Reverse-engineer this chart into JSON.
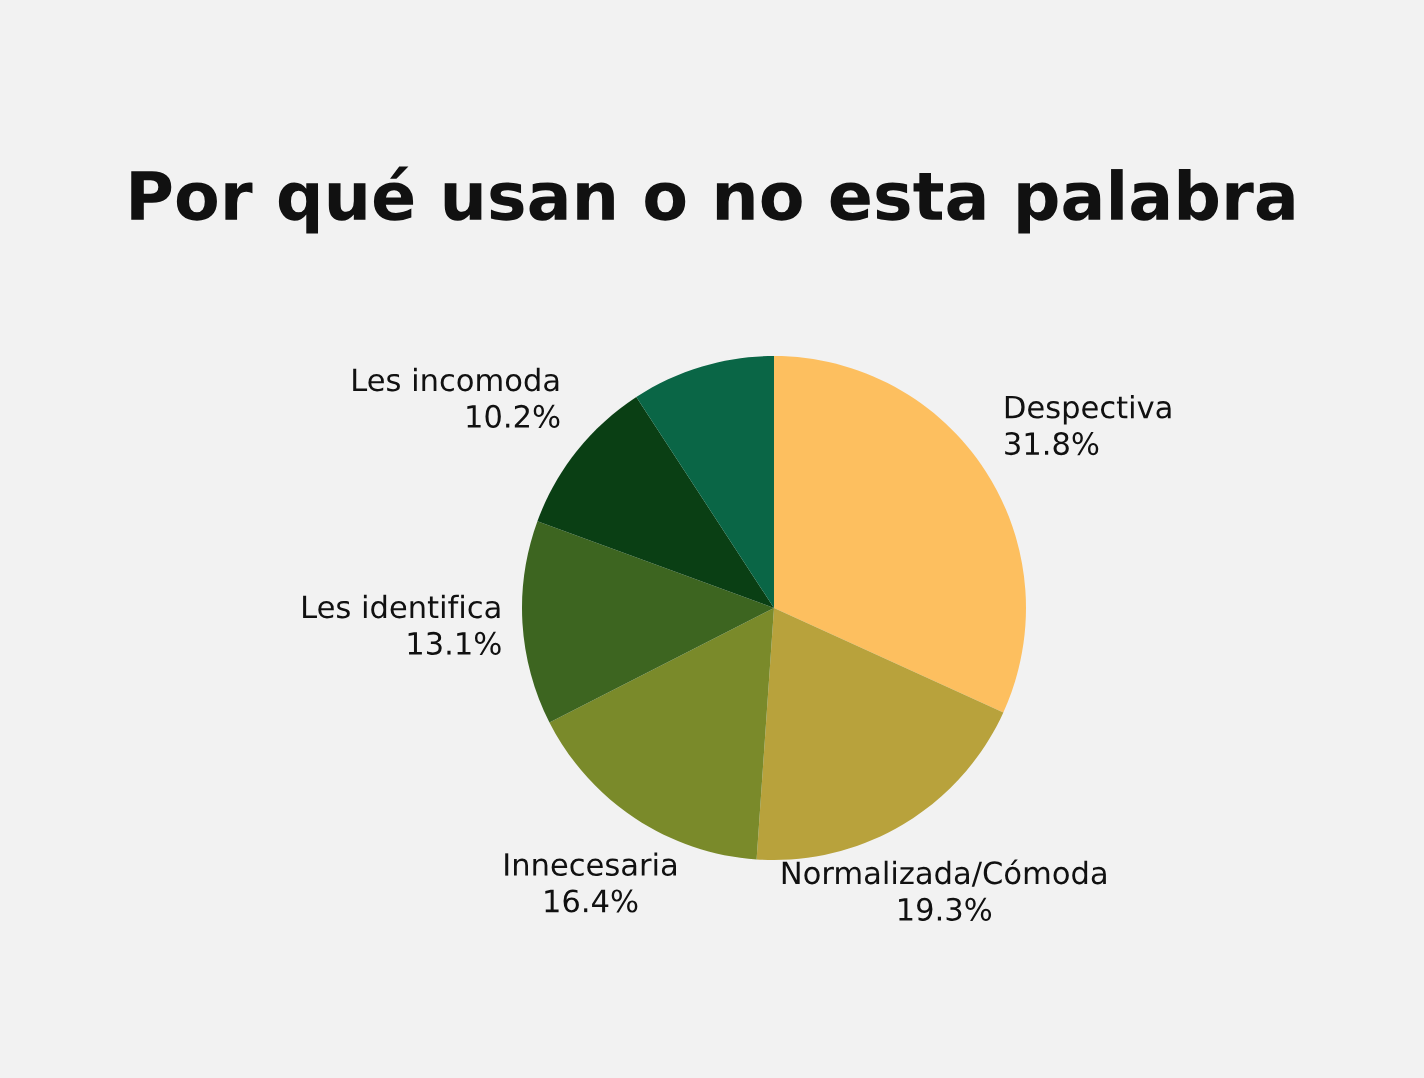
{
  "chart_data": {
    "type": "pie",
    "title": "Por qué usan o no esta palabra",
    "categories": [
      "Despectiva",
      "Normalizada/Cómoda",
      "Innecesaria",
      "Les identifica",
      "Les incomoda",
      null
    ],
    "values": [
      31.8,
      19.3,
      16.4,
      13.1,
      10.2,
      9.2
    ],
    "value_labels": [
      "31.8%",
      "19.3%",
      "16.4%",
      "13.1%",
      "10.2%",
      null
    ],
    "colors": [
      "#fdbf5f",
      "#b8a23c",
      "#7a8a2a",
      "#3d6520",
      "#0a3f14",
      "#0a6646"
    ],
    "legend": false
  }
}
